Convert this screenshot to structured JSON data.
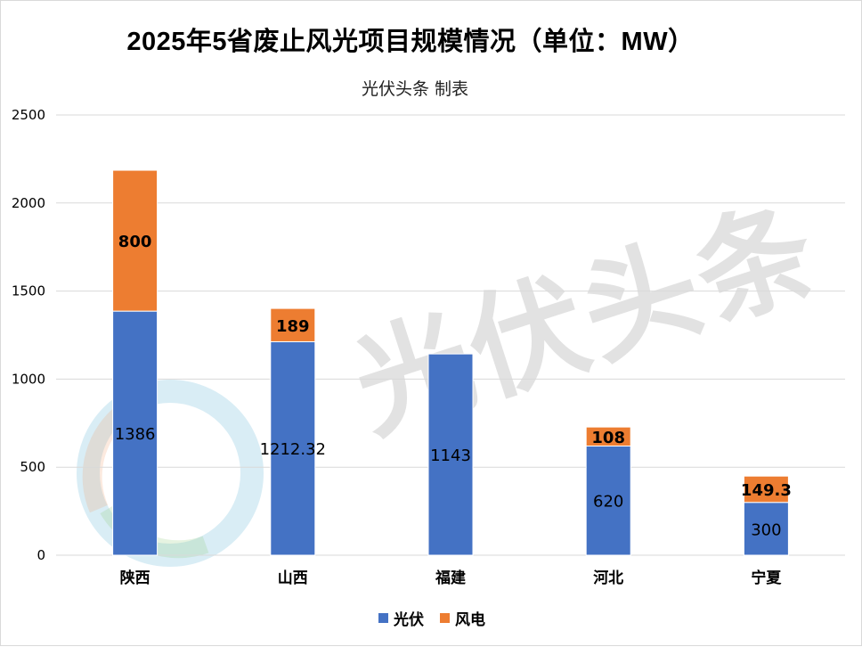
{
  "page": {
    "title": "2025年5省废止风光项目规模情况（单位：MW）",
    "subtitle": "光伏头条 制表",
    "watermark": "光伏头条"
  },
  "colors": {
    "solar": "#4472C4",
    "wind": "#ED7D31",
    "grid": "#d9d9d9",
    "axis_text": "#000000"
  },
  "chart_data": {
    "type": "bar",
    "stacked": true,
    "title": "2025年5省废止风光项目规模情况（单位：MW）",
    "subtitle": "光伏头条 制表",
    "categories": [
      "陕西",
      "山西",
      "福建",
      "河北",
      "宁夏"
    ],
    "series": [
      {
        "name": "光伏",
        "values": [
          1386,
          1212.32,
          1143,
          620,
          300
        ],
        "labels": [
          "1386",
          "1212.32",
          "1143",
          "620",
          "300"
        ]
      },
      {
        "name": "风电",
        "values": [
          800,
          189,
          0,
          108,
          149.3
        ],
        "labels": [
          "800",
          "189",
          "",
          "108",
          "149.3"
        ]
      }
    ],
    "ylim": [
      0,
      2500
    ],
    "yticks": [
      0,
      500,
      1000,
      1500,
      2000,
      2500
    ],
    "ytick_labels": [
      "0",
      "500",
      "1000",
      "1500",
      "2000",
      "2500"
    ],
    "grid": true,
    "legend": "bottom"
  }
}
